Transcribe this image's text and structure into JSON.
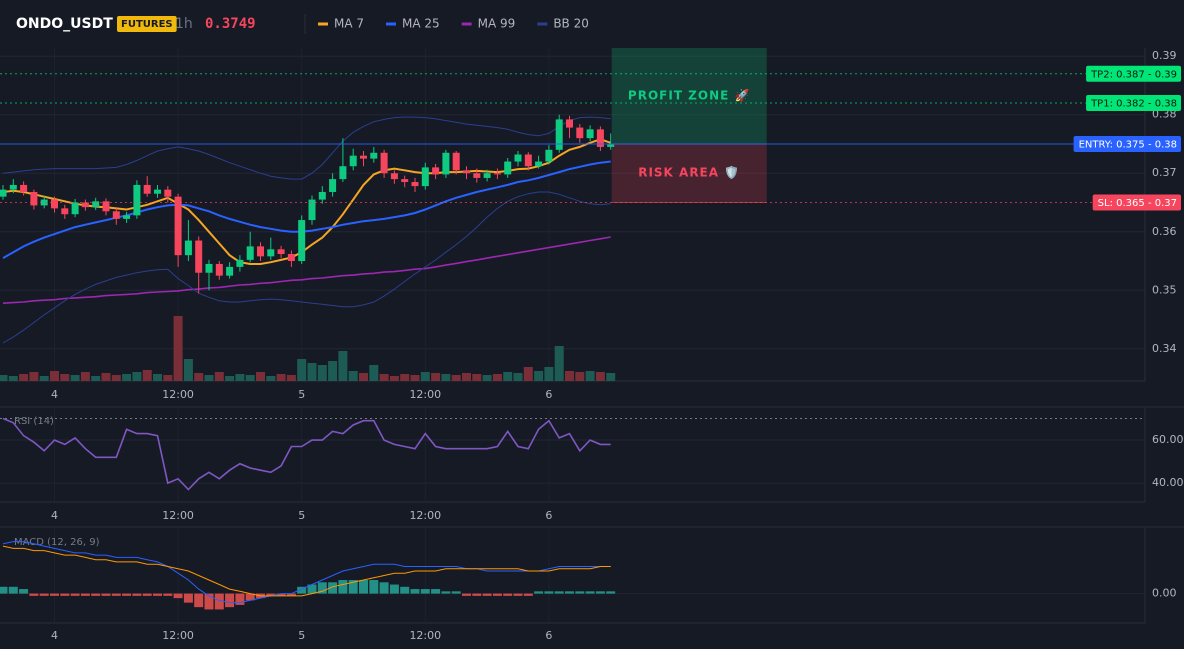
{
  "chart_data": {
    "type": "candlestick",
    "title": "ONDO_USDT",
    "badge": "FUTURES",
    "interval": "1h",
    "last_price": 0.3749,
    "categories": [
      null,
      null,
      null,
      null,
      null,
      "4",
      null,
      null,
      null,
      null,
      null,
      null,
      null,
      null,
      null,
      null,
      null,
      "12:00",
      null,
      null,
      null,
      null,
      null,
      null,
      null,
      null,
      null,
      null,
      null,
      "5",
      null,
      null,
      null,
      null,
      null,
      null,
      null,
      null,
      null,
      null,
      null,
      "12:00",
      null,
      null,
      null,
      null,
      null,
      null,
      null,
      null,
      null,
      null,
      null,
      "6",
      null,
      null,
      null,
      null,
      null,
      null
    ],
    "ylim": [
      0.3345,
      0.3914
    ],
    "yticks": [
      0.34,
      0.35,
      0.36,
      0.37,
      0.38,
      0.39
    ],
    "up_color": "#0ecb81",
    "down_color": "#f6465d",
    "candles": {
      "open": [
        0.366,
        0.3672,
        0.368,
        0.3668,
        0.3645,
        0.3655,
        0.364,
        0.363,
        0.365,
        0.3642,
        0.3652,
        0.3635,
        0.3622,
        0.3628,
        0.368,
        0.3665,
        0.3672,
        0.366,
        0.356,
        0.3585,
        0.353,
        0.3545,
        0.3525,
        0.354,
        0.3552,
        0.3575,
        0.3558,
        0.357,
        0.3562,
        0.355,
        0.362,
        0.3655,
        0.3668,
        0.369,
        0.3712,
        0.373,
        0.3725,
        0.3735,
        0.37,
        0.369,
        0.3685,
        0.3678,
        0.371,
        0.3698,
        0.3735,
        0.3705,
        0.37,
        0.3692,
        0.37,
        0.3698,
        0.372,
        0.3732,
        0.3712,
        0.372,
        0.374,
        0.3792,
        0.3778,
        0.376,
        0.3775,
        0.3745
      ],
      "high": [
        0.368,
        0.369,
        0.3686,
        0.3672,
        0.3662,
        0.366,
        0.3646,
        0.3656,
        0.3655,
        0.3658,
        0.3657,
        0.364,
        0.3634,
        0.3688,
        0.3695,
        0.368,
        0.3678,
        0.3665,
        0.362,
        0.3592,
        0.3552,
        0.355,
        0.3548,
        0.356,
        0.36,
        0.3582,
        0.359,
        0.3576,
        0.3568,
        0.3628,
        0.3662,
        0.3678,
        0.37,
        0.376,
        0.3742,
        0.3738,
        0.3745,
        0.374,
        0.3705,
        0.3696,
        0.3692,
        0.3718,
        0.3716,
        0.374,
        0.3738,
        0.3712,
        0.3708,
        0.3706,
        0.3708,
        0.3726,
        0.3738,
        0.3736,
        0.373,
        0.3748,
        0.38,
        0.3798,
        0.3784,
        0.3782,
        0.378,
        0.3768
      ],
      "low": [
        0.3655,
        0.3666,
        0.3662,
        0.3638,
        0.364,
        0.3633,
        0.3622,
        0.3625,
        0.3636,
        0.3637,
        0.3628,
        0.3612,
        0.3615,
        0.3622,
        0.366,
        0.3658,
        0.365,
        0.354,
        0.355,
        0.3495,
        0.35,
        0.3518,
        0.352,
        0.3532,
        0.3548,
        0.355,
        0.3552,
        0.3555,
        0.354,
        0.3545,
        0.3612,
        0.3648,
        0.366,
        0.3685,
        0.3705,
        0.3712,
        0.3718,
        0.3692,
        0.3682,
        0.3676,
        0.3668,
        0.3672,
        0.369,
        0.3692,
        0.3698,
        0.369,
        0.3684,
        0.3686,
        0.369,
        0.3692,
        0.3712,
        0.3705,
        0.3708,
        0.3715,
        0.3735,
        0.376,
        0.3752,
        0.3755,
        0.3738,
        0.374
      ],
      "close": [
        0.3672,
        0.368,
        0.3668,
        0.3645,
        0.3655,
        0.364,
        0.363,
        0.365,
        0.3642,
        0.3652,
        0.3635,
        0.3622,
        0.3628,
        0.368,
        0.3665,
        0.3672,
        0.366,
        0.356,
        0.3585,
        0.353,
        0.3545,
        0.3525,
        0.354,
        0.3552,
        0.3575,
        0.3558,
        0.357,
        0.3562,
        0.355,
        0.362,
        0.3655,
        0.3668,
        0.369,
        0.3712,
        0.373,
        0.3725,
        0.3735,
        0.37,
        0.369,
        0.3685,
        0.3678,
        0.371,
        0.3698,
        0.3735,
        0.3705,
        0.37,
        0.3692,
        0.37,
        0.3698,
        0.372,
        0.3732,
        0.3712,
        0.372,
        0.374,
        0.3792,
        0.3778,
        0.376,
        0.3775,
        0.3745,
        0.3749
      ]
    },
    "overlays": [
      {
        "name": "MA 7",
        "color": "#f5a623",
        "values": [
          0.3668,
          0.367,
          0.3668,
          0.3664,
          0.366,
          0.3656,
          0.3652,
          0.3648,
          0.3645,
          0.3643,
          0.3642,
          0.364,
          0.3638,
          0.3642,
          0.3646,
          0.3652,
          0.3658,
          0.3648,
          0.3638,
          0.362,
          0.36,
          0.358,
          0.356,
          0.3548,
          0.3545,
          0.3545,
          0.3548,
          0.3552,
          0.3556,
          0.3565,
          0.3578,
          0.359,
          0.3608,
          0.363,
          0.3655,
          0.368,
          0.3698,
          0.3705,
          0.3708,
          0.3705,
          0.3702,
          0.37,
          0.37,
          0.3702,
          0.3702,
          0.3703,
          0.3704,
          0.3703,
          0.3702,
          0.3704,
          0.3707,
          0.3708,
          0.3712,
          0.3718,
          0.373,
          0.374,
          0.3745,
          0.3752,
          0.3758,
          0.3752
        ]
      },
      {
        "name": "MA 25",
        "color": "#2962ff",
        "values": [
          0.3555,
          0.3565,
          0.3575,
          0.3583,
          0.359,
          0.3596,
          0.3602,
          0.3608,
          0.3612,
          0.3616,
          0.362,
          0.3624,
          0.3628,
          0.3633,
          0.3638,
          0.3642,
          0.3645,
          0.3646,
          0.3645,
          0.364,
          0.3635,
          0.3628,
          0.3622,
          0.3617,
          0.3612,
          0.3608,
          0.3605,
          0.3602,
          0.36,
          0.36,
          0.3602,
          0.3605,
          0.3608,
          0.3612,
          0.3615,
          0.3618,
          0.362,
          0.3622,
          0.3625,
          0.3628,
          0.3632,
          0.3638,
          0.3645,
          0.3652,
          0.3658,
          0.3663,
          0.3668,
          0.3672,
          0.3676,
          0.368,
          0.3685,
          0.3688,
          0.3692,
          0.3697,
          0.3702,
          0.3707,
          0.3711,
          0.3715,
          0.3718,
          0.372
        ]
      },
      {
        "name": "MA 99",
        "color": "#9c27b0",
        "values": [
          0.3478,
          0.3479,
          0.348,
          0.3482,
          0.3483,
          0.3484,
          0.3486,
          0.3487,
          0.3488,
          0.3489,
          0.3491,
          0.3492,
          0.3493,
          0.3494,
          0.3496,
          0.3497,
          0.3498,
          0.3499,
          0.3501,
          0.3502,
          0.3504,
          0.3505,
          0.3507,
          0.3509,
          0.351,
          0.3512,
          0.3513,
          0.3515,
          0.3517,
          0.3518,
          0.352,
          0.3521,
          0.3523,
          0.3525,
          0.3526,
          0.3528,
          0.3529,
          0.3531,
          0.3532,
          0.3534,
          0.3536,
          0.3537,
          0.354,
          0.3543,
          0.3546,
          0.3549,
          0.3552,
          0.3555,
          0.3558,
          0.3561,
          0.3564,
          0.3567,
          0.357,
          0.3573,
          0.3576,
          0.3579,
          0.3582,
          0.3585,
          0.3588,
          0.3591
        ]
      },
      {
        "name": "BB 20",
        "color": "#2b3f8f",
        "upper": [
          0.37,
          0.3702,
          0.3704,
          0.3706,
          0.3707,
          0.3708,
          0.3708,
          0.3708,
          0.3708,
          0.3708,
          0.3709,
          0.371,
          0.3715,
          0.3722,
          0.373,
          0.3738,
          0.3742,
          0.3745,
          0.3742,
          0.3738,
          0.3732,
          0.3725,
          0.3718,
          0.3712,
          0.3706,
          0.37,
          0.3695,
          0.3692,
          0.369,
          0.369,
          0.37,
          0.3715,
          0.3735,
          0.3755,
          0.377,
          0.378,
          0.3788,
          0.3792,
          0.3795,
          0.3796,
          0.3796,
          0.3795,
          0.3793,
          0.379,
          0.3787,
          0.3784,
          0.3782,
          0.378,
          0.3778,
          0.3775,
          0.377,
          0.3766,
          0.3764,
          0.3768,
          0.378,
          0.379,
          0.3795,
          0.3796,
          0.3795,
          0.3793
        ],
        "lower": [
          0.341,
          0.342,
          0.3432,
          0.3445,
          0.3458,
          0.347,
          0.3482,
          0.3493,
          0.3502,
          0.351,
          0.3516,
          0.3522,
          0.3526,
          0.353,
          0.3533,
          0.3535,
          0.3536,
          0.352,
          0.3508,
          0.3495,
          0.3488,
          0.3482,
          0.348,
          0.348,
          0.3482,
          0.3484,
          0.3485,
          0.3484,
          0.3482,
          0.348,
          0.3478,
          0.3476,
          0.3474,
          0.3472,
          0.3472,
          0.3475,
          0.348,
          0.349,
          0.3502,
          0.3515,
          0.3528,
          0.354,
          0.3552,
          0.3565,
          0.3578,
          0.3592,
          0.3608,
          0.3625,
          0.364,
          0.3652,
          0.366,
          0.3665,
          0.3668,
          0.3668,
          0.3664,
          0.3658,
          0.3652,
          0.3648,
          0.3646,
          0.3648
        ]
      }
    ],
    "volume": [
      6,
      5,
      7,
      9,
      5,
      10,
      7,
      6,
      9,
      5,
      8,
      6,
      7,
      9,
      11,
      7,
      6,
      65,
      22,
      8,
      6,
      9,
      5,
      7,
      6,
      9,
      5,
      7,
      6,
      22,
      18,
      16,
      20,
      30,
      10,
      8,
      16,
      7,
      5,
      7,
      6,
      9,
      8,
      7,
      6,
      8,
      7,
      6,
      7,
      9,
      8,
      14,
      10,
      14,
      35,
      10,
      9,
      10,
      9,
      8
    ],
    "levels": [
      {
        "label": "TP2: 0.387 - 0.39",
        "value": 0.387,
        "color": "#00e676",
        "style": "dotted"
      },
      {
        "label": "TP1: 0.382 - 0.38",
        "value": 0.382,
        "color": "#00e676",
        "style": "dotted"
      },
      {
        "label": "ENTRY: 0.375 - 0.38",
        "value": 0.375,
        "color": "#2962ff",
        "style": "solid"
      },
      {
        "label": "SL: 0.365 - 0.37",
        "value": 0.365,
        "color": "#f6465d",
        "style": "dotted"
      }
    ],
    "zones": [
      {
        "label": "PROFIT ZONE 🚀",
        "from": 0.375,
        "to": 0.3914,
        "color": "#0ecb81"
      },
      {
        "label": "RISK AREA 🛡️",
        "from": 0.375,
        "to": 0.365,
        "color": "#f6465d"
      }
    ],
    "panels": [
      {
        "type": "line",
        "title": "RSI (14)",
        "ylim": [
          31.2,
          74.9
        ],
        "yticks": [
          {
            "value": 40,
            "label": "40.00"
          },
          {
            "value": 60,
            "label": "60.00"
          }
        ],
        "level": 70,
        "color": "#7e57c2",
        "values": [
          70,
          68,
          62,
          59,
          55,
          60,
          58,
          61,
          56,
          52,
          52,
          52,
          65,
          63,
          63,
          62,
          40,
          42,
          37,
          42,
          45,
          42,
          46,
          49,
          47,
          46,
          45,
          48,
          57,
          57,
          60,
          60,
          64,
          63,
          67,
          69,
          69,
          60,
          58,
          57,
          56,
          63,
          57,
          56,
          56,
          56,
          56,
          56,
          57,
          64,
          57,
          56,
          65,
          69,
          61,
          63,
          55,
          60,
          58,
          58
        ]
      },
      {
        "type": "macd",
        "title": "MACD (12, 26, 9)",
        "ylim": [
          -0.0013,
          0.0029
        ],
        "yticks": [
          {
            "value": 0,
            "label": "0.00"
          }
        ],
        "series": [
          {
            "color": "#2962ff",
            "values": [
              0.0022,
              0.0023,
              0.0023,
              0.0022,
              0.0021,
              0.002,
              0.0019,
              0.0018,
              0.0018,
              0.0017,
              0.0017,
              0.0016,
              0.0016,
              0.0016,
              0.0015,
              0.0014,
              0.0012,
              0.0009,
              0.0006,
              0.0002,
              -0.0001,
              -0.0003,
              -0.0004,
              -0.0004,
              -0.0003,
              -0.0002,
              -0.0001,
              0.0,
              0.0,
              0.0002,
              0.0004,
              0.0006,
              0.0008,
              0.001,
              0.0011,
              0.0012,
              0.0013,
              0.0013,
              0.0013,
              0.0012,
              0.0012,
              0.0012,
              0.0012,
              0.0012,
              0.0012,
              0.0011,
              0.0011,
              0.001,
              0.001,
              0.001,
              0.001,
              0.001,
              0.001,
              0.0011,
              0.0012,
              0.0012,
              0.0012,
              0.0012,
              0.0012,
              0.0012
            ]
          },
          {
            "color": "#ff9800",
            "values": [
              0.0021,
              0.002,
              0.002,
              0.0019,
              0.0019,
              0.0018,
              0.0017,
              0.0017,
              0.0016,
              0.0015,
              0.0015,
              0.0014,
              0.0014,
              0.0014,
              0.0013,
              0.0013,
              0.0012,
              0.0011,
              0.001,
              0.0008,
              0.0006,
              0.0004,
              0.0002,
              0.0001,
              0.0,
              -0.0001,
              -0.0001,
              -0.0001,
              -0.0001,
              -0.0001,
              0.0,
              0.0001,
              0.0003,
              0.0004,
              0.0005,
              0.0006,
              0.0007,
              0.0008,
              0.0009,
              0.0009,
              0.001,
              0.001,
              0.001,
              0.0011,
              0.0011,
              0.0011,
              0.0011,
              0.0011,
              0.0011,
              0.0011,
              0.0011,
              0.001,
              0.001,
              0.001,
              0.0011,
              0.0011,
              0.0011,
              0.0011,
              0.0012,
              0.0012
            ]
          }
        ],
        "histogram": {
          "up_color": "#26a69a",
          "down_color": "#ef5350",
          "values": [
            0.0003,
            0.0003,
            0.0002,
            -0.0001,
            -0.0001,
            -0.0001,
            -0.0001,
            -0.0001,
            -0.0001,
            -0.0001,
            -0.0001,
            -0.0001,
            -0.0001,
            -0.0001,
            -0.0001,
            -0.0001,
            -0.0001,
            -0.0002,
            -0.0004,
            -0.0006,
            -0.0007,
            -0.0007,
            -0.0006,
            -0.0005,
            -0.0003,
            -0.0002,
            -0.0001,
            -0.0001,
            -0.0001,
            0.0003,
            0.0004,
            0.0005,
            0.0005,
            0.0006,
            0.0006,
            0.0006,
            0.0006,
            0.0005,
            0.0004,
            0.0003,
            0.0002,
            0.0002,
            0.0002,
            0.0001,
            0.0001,
            -0.0001,
            -0.0001,
            -0.0001,
            -0.0001,
            -0.0001,
            -0.0001,
            -0.0001,
            0.0001,
            0.0001,
            0.0001,
            0.0001,
            0.0001,
            0.0001,
            0.0001,
            0.0001
          ]
        }
      }
    ]
  }
}
